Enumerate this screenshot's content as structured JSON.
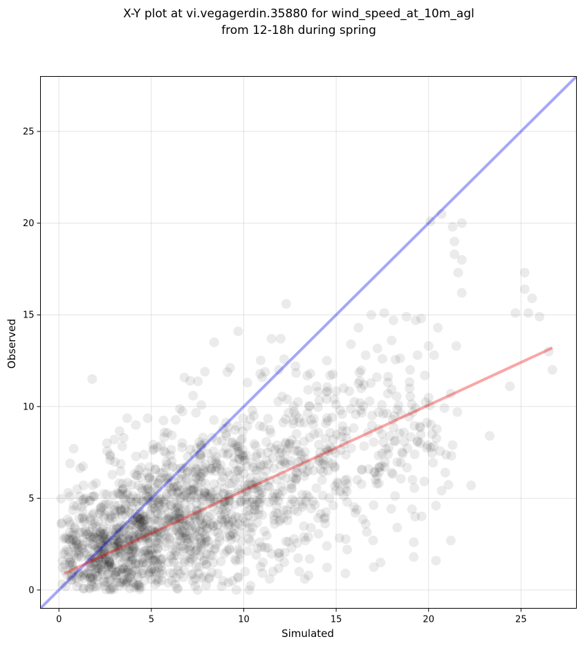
{
  "chart_data": {
    "type": "scatter",
    "title_line1": "X-Y plot at vi.vegagerdin.35880 for wind_speed_at_10m_agl",
    "title_line2": "from 12-18h during spring",
    "xlabel": "Simulated",
    "ylabel": "Observed",
    "xlim": [
      -1,
      28
    ],
    "ylim": [
      -1,
      28
    ],
    "xticks": [
      0,
      5,
      10,
      15,
      20,
      25
    ],
    "yticks": [
      0,
      5,
      10,
      15,
      20,
      25
    ],
    "grid": true,
    "colors": {
      "points": "#000000",
      "identity_line": "#0000ee",
      "fit_line": "#ee0000"
    },
    "identity_line": {
      "x": [
        -1,
        28
      ],
      "y": [
        -1,
        28
      ]
    },
    "fit_line": {
      "x": [
        0.3,
        26.7
      ],
      "y": [
        0.9,
        13.2
      ]
    },
    "outliers": [
      [
        1.8,
        11.5
      ],
      [
        0.6,
        6.9
      ],
      [
        0.8,
        7.7
      ],
      [
        0.5,
        5.3
      ],
      [
        3.5,
        8.3
      ],
      [
        3.0,
        8.2
      ],
      [
        2.6,
        8.0
      ],
      [
        7.1,
        11.4
      ],
      [
        7.9,
        11.9
      ],
      [
        8.4,
        13.5
      ],
      [
        9.7,
        14.1
      ],
      [
        11.5,
        13.7
      ],
      [
        12.3,
        15.6
      ],
      [
        12.0,
        13.7
      ],
      [
        10.2,
        11.3
      ],
      [
        11.0,
        11.6
      ],
      [
        14.5,
        12.5
      ],
      [
        15.8,
        13.4
      ],
      [
        16.2,
        14.3
      ],
      [
        16.6,
        12.8
      ],
      [
        16.9,
        15.0
      ],
      [
        17.5,
        12.6
      ],
      [
        17.6,
        15.1
      ],
      [
        18.1,
        14.7
      ],
      [
        18.0,
        13.6
      ],
      [
        18.8,
        14.9
      ],
      [
        19.3,
        14.7
      ],
      [
        19.6,
        14.8
      ],
      [
        19.4,
        12.8
      ],
      [
        20.0,
        13.3
      ],
      [
        20.5,
        14.3
      ],
      [
        20.1,
        20.1
      ],
      [
        20.7,
        20.5
      ],
      [
        21.3,
        19.8
      ],
      [
        21.4,
        19.0
      ],
      [
        21.4,
        18.3
      ],
      [
        21.8,
        20.0
      ],
      [
        21.8,
        18.0
      ],
      [
        21.6,
        17.3
      ],
      [
        21.8,
        16.2
      ],
      [
        21.5,
        13.3
      ],
      [
        21.2,
        10.7
      ],
      [
        21.3,
        7.9
      ],
      [
        21.2,
        2.7
      ],
      [
        20.4,
        1.6
      ],
      [
        19.2,
        1.8
      ],
      [
        19.2,
        2.6
      ],
      [
        17.4,
        1.5
      ],
      [
        15.5,
        0.9
      ],
      [
        13.3,
        0.6
      ],
      [
        22.3,
        5.7
      ],
      [
        23.3,
        8.4
      ],
      [
        24.4,
        11.1
      ],
      [
        24.7,
        15.1
      ],
      [
        25.2,
        17.3
      ],
      [
        25.2,
        16.4
      ],
      [
        25.6,
        15.9
      ],
      [
        25.4,
        15.1
      ],
      [
        26.0,
        14.9
      ],
      [
        26.5,
        13.0
      ],
      [
        26.7,
        12.0
      ],
      [
        20.9,
        6.4
      ],
      [
        20.4,
        4.6
      ],
      [
        19.1,
        4.4
      ],
      [
        18.3,
        3.4
      ],
      [
        16.6,
        3.6
      ],
      [
        17.0,
        2.7
      ],
      [
        15.6,
        2.2
      ],
      [
        14.5,
        2.4
      ],
      [
        13.0,
        1.0
      ],
      [
        11.4,
        0.6
      ],
      [
        10.3,
        0.0
      ],
      [
        9.6,
        0.0
      ],
      [
        8.8,
        0.2
      ],
      [
        7.5,
        0.0
      ],
      [
        6.3,
        0.3
      ],
      [
        16.3,
        10.2
      ],
      [
        17.8,
        10.7
      ],
      [
        18.5,
        9.6
      ],
      [
        19.8,
        11.7
      ],
      [
        20.3,
        12.8
      ],
      [
        19.0,
        12.0
      ],
      [
        17.2,
        11.6
      ],
      [
        15.4,
        11.0
      ],
      [
        14.9,
        10.4
      ],
      [
        13.6,
        11.8
      ],
      [
        12.8,
        12.2
      ],
      [
        11.9,
        12.0
      ]
    ],
    "clusters": [
      {
        "cx": 2.0,
        "cy": 1.5,
        "sx": 1.6,
        "sy": 1.6,
        "n": 420
      },
      {
        "cx": 4.5,
        "cy": 2.8,
        "sx": 2.0,
        "sy": 2.0,
        "n": 420
      },
      {
        "cx": 7.2,
        "cy": 4.2,
        "sx": 2.2,
        "sy": 2.3,
        "n": 360
      },
      {
        "cx": 10.2,
        "cy": 5.6,
        "sx": 2.3,
        "sy": 2.4,
        "n": 260
      },
      {
        "cx": 13.2,
        "cy": 6.6,
        "sx": 2.3,
        "sy": 2.5,
        "n": 160
      },
      {
        "cx": 16.3,
        "cy": 8.3,
        "sx": 2.2,
        "sy": 2.3,
        "n": 90
      },
      {
        "cx": 19.0,
        "cy": 9.2,
        "sx": 1.5,
        "sy": 2.0,
        "n": 45
      }
    ]
  }
}
